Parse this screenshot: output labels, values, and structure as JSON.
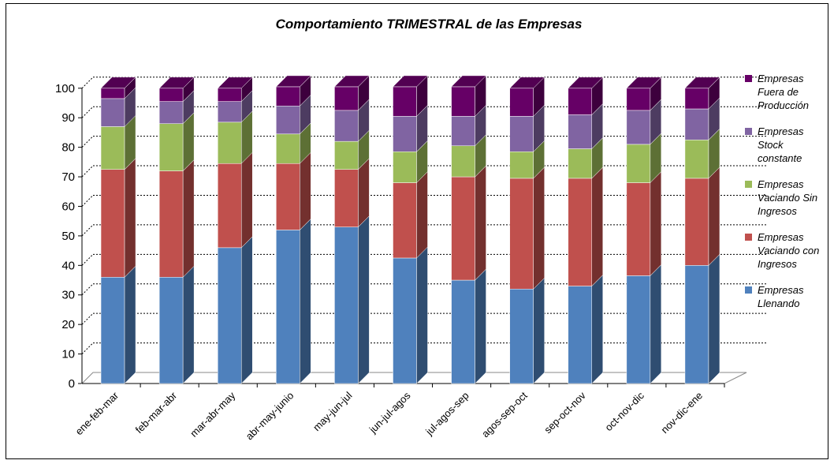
{
  "chart_data": {
    "type": "bar",
    "stacked": true,
    "title": "Comportamiento TRIMESTRAL de las Empresas",
    "xlabel": "",
    "ylabel": "",
    "ylim": [
      0,
      100
    ],
    "yticks": [
      0,
      10,
      20,
      30,
      40,
      50,
      60,
      70,
      80,
      90,
      100
    ],
    "grid": true,
    "legend_position": "right",
    "categories": [
      "ene-feb-mar",
      "feb-mar-abr",
      "mar-abr-may",
      "abr-may-junio",
      "may-jun-jul",
      "jun-jul-agos",
      "jul-agos-sep",
      "agos-sep-oct",
      "sep-oct-nov",
      "oct-nov-dic",
      "nov-dic-ene"
    ],
    "series": [
      {
        "name": "Empresas Llenando",
        "legend_lines": [
          "Empresas",
          "Llenando"
        ],
        "color": "#4F81BD",
        "values": [
          36,
          36,
          46,
          52,
          53,
          42.5,
          35,
          32,
          33,
          36.5,
          40
        ]
      },
      {
        "name": "Empresas Vaciando con Ingresos",
        "legend_lines": [
          "Empresas",
          "Vaciando con",
          "Ingresos"
        ],
        "color": "#C0504D",
        "values": [
          36.5,
          36,
          28.5,
          22.5,
          19.5,
          25.5,
          35,
          37.5,
          36.5,
          31.5,
          29.5
        ]
      },
      {
        "name": "Empresas Vaciando Sin Ingresos",
        "legend_lines": [
          "Empresas",
          "Vaciando Sin",
          "Ingresos"
        ],
        "color": "#9BBB59",
        "values": [
          14.5,
          16,
          14,
          10,
          9.5,
          10.5,
          10.5,
          9,
          10,
          13,
          13
        ]
      },
      {
        "name": "Empresas Stock constante",
        "legend_lines": [
          "Empresas",
          "Stock",
          "constante"
        ],
        "color": "#8064A2",
        "values": [
          9.5,
          7.5,
          7,
          9.5,
          10.5,
          12,
          10,
          12,
          11.5,
          11.5,
          10.5
        ]
      },
      {
        "name": "Empresas Fuera de Producción",
        "legend_lines": [
          "Empresas",
          "Fuera de",
          "Producción"
        ],
        "color": "#660066",
        "values": [
          3.5,
          4.5,
          4.5,
          6.5,
          8,
          10,
          10,
          9.5,
          9,
          7.5,
          7
        ]
      }
    ]
  }
}
